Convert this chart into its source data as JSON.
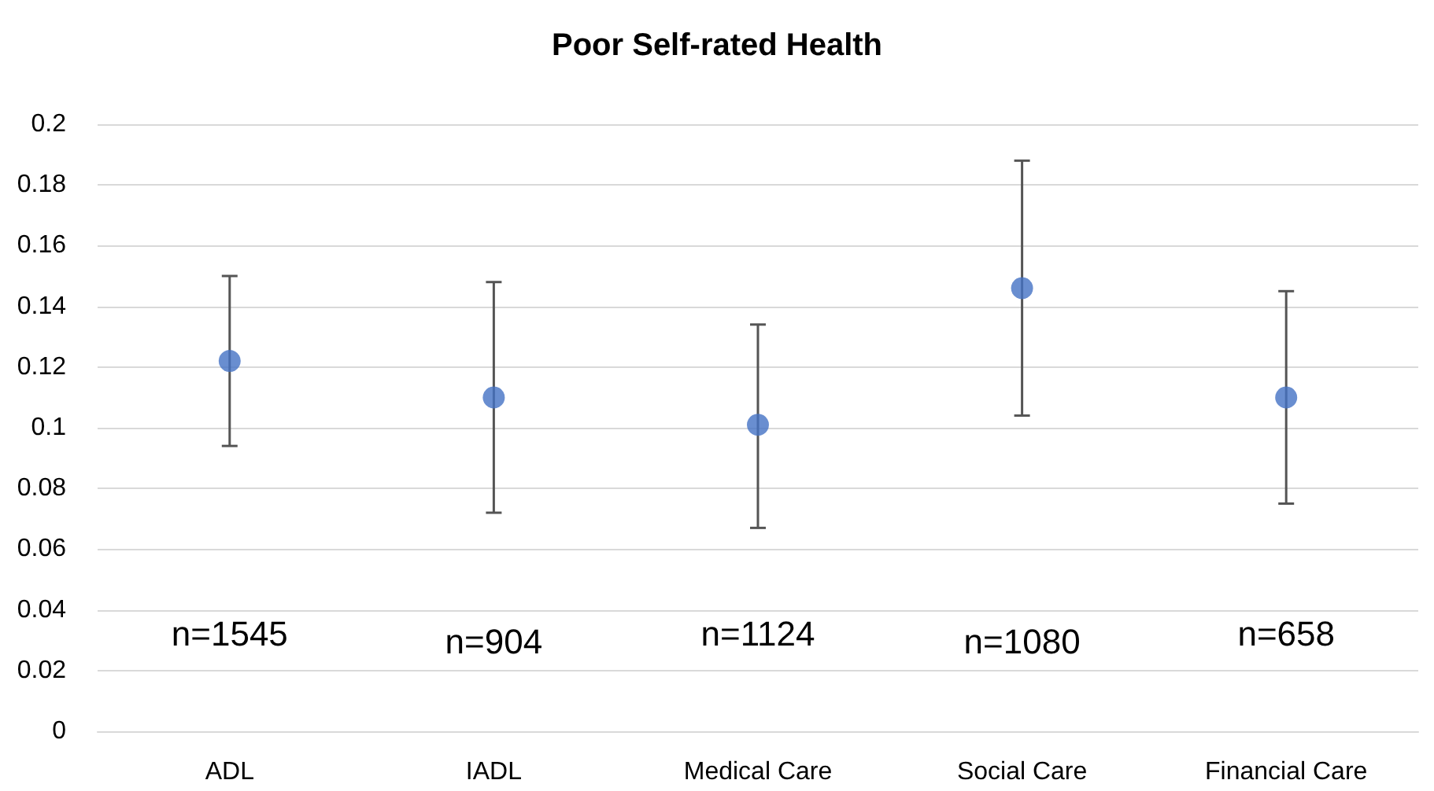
{
  "chart_data": {
    "type": "scatter",
    "title": "Poor Self-rated Health",
    "categories": [
      "ADL",
      "IADL",
      "Medical Care",
      "Social Care",
      "Financial Care"
    ],
    "series": [
      {
        "color": "#4472c4",
        "values": [
          0.122,
          0.11,
          0.101,
          0.146,
          0.11
        ],
        "errors": [
          [
            0.094,
            0.15
          ],
          [
            0.072,
            0.148
          ],
          [
            0.067,
            0.134
          ],
          [
            0.104,
            0.188
          ],
          [
            0.075,
            0.145
          ]
        ]
      }
    ],
    "ylim": [
      0,
      0.2
    ],
    "yticks": [
      0,
      0.02,
      0.04,
      0.06,
      0.08,
      0.1,
      0.12,
      0.14,
      0.16,
      0.18,
      0.2
    ],
    "grid": "y",
    "marker": "circle",
    "annotations": [
      "n=1545",
      "n=904",
      "n=1124",
      "n=1080",
      "n=658"
    ]
  }
}
